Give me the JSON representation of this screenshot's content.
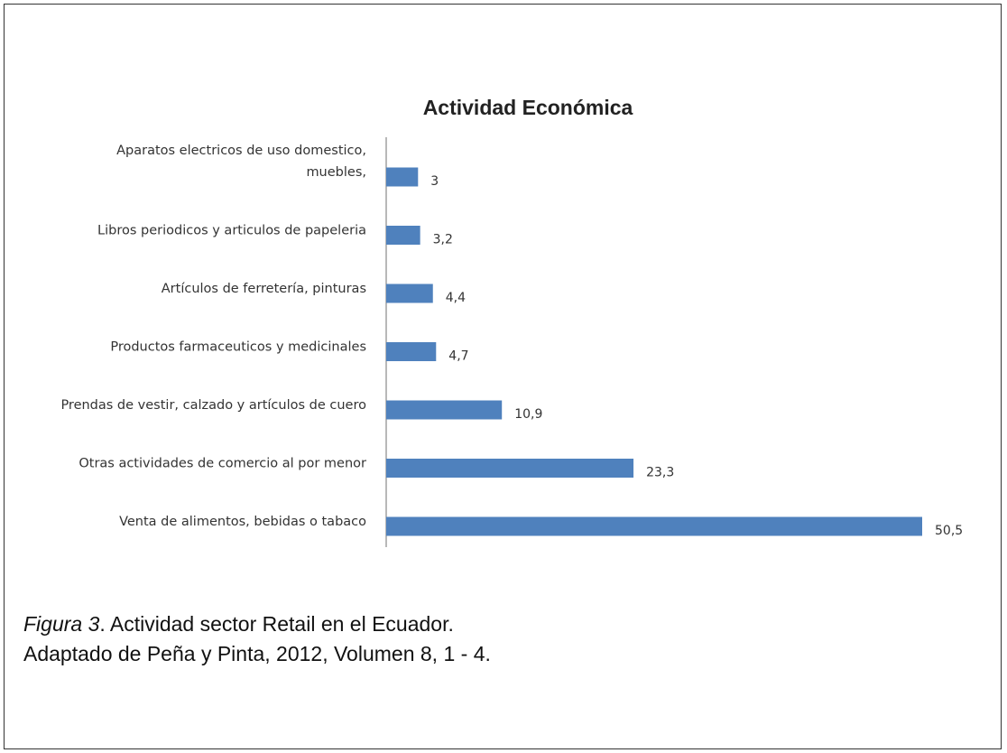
{
  "chart_data": {
    "type": "bar",
    "orientation": "horizontal",
    "title": "Actividad Económica",
    "xlabel": "",
    "ylabel": "",
    "categories": [
      [
        "Aparatos electricos de uso domestico,",
        "muebles,"
      ],
      [
        "Libros periodicos y articulos de papeleria"
      ],
      [
        "Artículos de ferretería, pinturas"
      ],
      [
        "Productos farmaceuticos y medicinales"
      ],
      [
        "Prendas de vestir, calzado y artículos de cuero"
      ],
      [
        "Otras actividades de comercio al por menor"
      ],
      [
        "Venta de alimentos, bebidas o tabaco"
      ]
    ],
    "values": [
      3,
      3.2,
      4.4,
      4.7,
      10.9,
      23.3,
      50.5
    ],
    "value_labels": [
      "3",
      "3,2",
      "4,4",
      "4,7",
      "10,9",
      "23,3",
      "50,5"
    ],
    "xlim": [
      0,
      50.5
    ],
    "bar_color": "#4F81BD",
    "axis_color": "#888888",
    "grid": false,
    "legend": "none"
  },
  "caption": {
    "figure_label": "Figura 3",
    "line1_rest": ".  Actividad sector Retail en el Ecuador.",
    "line2": "Adaptado de Peña y Pinta, 2012, Volumen 8, 1 - 4."
  }
}
